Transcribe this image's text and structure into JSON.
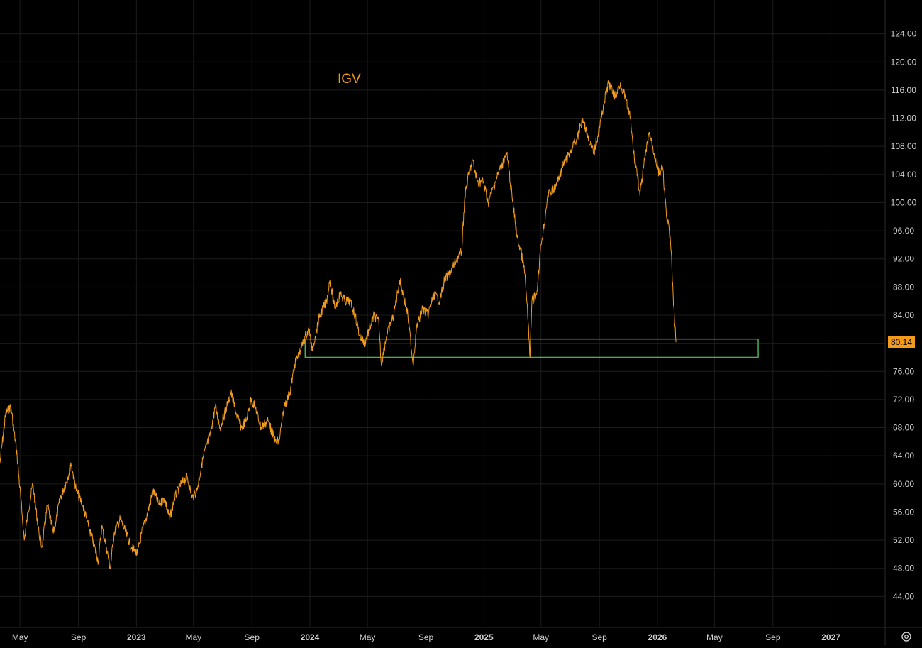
{
  "chart_data": {
    "type": "line",
    "title": "IGV",
    "xlabel": "",
    "ylabel": "",
    "x_range": [
      "2022-03-20",
      "2027-04-25"
    ],
    "ylim": [
      40,
      128
    ],
    "grid": true,
    "y_ticks": [
      "44.00",
      "48.00",
      "52.00",
      "56.00",
      "60.00",
      "64.00",
      "68.00",
      "72.00",
      "76.00",
      "80.00",
      "84.00",
      "88.00",
      "92.00",
      "96.00",
      "100.00",
      "104.00",
      "108.00",
      "112.00",
      "116.00",
      "120.00",
      "124.00"
    ],
    "x_ticks": [
      {
        "date": "2022-05-01",
        "label": "May",
        "bold": false
      },
      {
        "date": "2022-09-01",
        "label": "Sep",
        "bold": false
      },
      {
        "date": "2023-01-01",
        "label": "2023",
        "bold": true
      },
      {
        "date": "2023-05-01",
        "label": "May",
        "bold": false
      },
      {
        "date": "2023-09-01",
        "label": "Sep",
        "bold": false
      },
      {
        "date": "2024-01-01",
        "label": "2024",
        "bold": true
      },
      {
        "date": "2024-05-01",
        "label": "May",
        "bold": false
      },
      {
        "date": "2024-09-01",
        "label": "Sep",
        "bold": false
      },
      {
        "date": "2025-01-01",
        "label": "2025",
        "bold": true
      },
      {
        "date": "2025-05-01",
        "label": "May",
        "bold": false
      },
      {
        "date": "2025-09-01",
        "label": "Sep",
        "bold": false
      },
      {
        "date": "2026-01-01",
        "label": "2026",
        "bold": true
      },
      {
        "date": "2026-05-01",
        "label": "May",
        "bold": false
      },
      {
        "date": "2026-09-01",
        "label": "Sep",
        "bold": false
      },
      {
        "date": "2027-01-01",
        "label": "2027",
        "bold": true
      }
    ],
    "series": [
      {
        "color": "#f29b1d",
        "points": [
          [
            "2022-03-20",
            63
          ],
          [
            "2022-04-01",
            70
          ],
          [
            "2022-04-12",
            71
          ],
          [
            "2022-04-25",
            64
          ],
          [
            "2022-05-05",
            56
          ],
          [
            "2022-05-10",
            52
          ],
          [
            "2022-05-18",
            56
          ],
          [
            "2022-05-28",
            60
          ],
          [
            "2022-06-10",
            53
          ],
          [
            "2022-06-16",
            51
          ],
          [
            "2022-06-28",
            57
          ],
          [
            "2022-07-10",
            53
          ],
          [
            "2022-07-25",
            58
          ],
          [
            "2022-08-10",
            61
          ],
          [
            "2022-08-16",
            63
          ],
          [
            "2022-08-28",
            59
          ],
          [
            "2022-09-10",
            57
          ],
          [
            "2022-09-22",
            54
          ],
          [
            "2022-10-01",
            52
          ],
          [
            "2022-10-13",
            49
          ],
          [
            "2022-10-20",
            54
          ],
          [
            "2022-10-30",
            51
          ],
          [
            "2022-11-07",
            48
          ],
          [
            "2022-11-15",
            53
          ],
          [
            "2022-11-28",
            55
          ],
          [
            "2022-12-10",
            53
          ],
          [
            "2022-12-22",
            51
          ],
          [
            "2023-01-03",
            50
          ],
          [
            "2023-01-12",
            53
          ],
          [
            "2023-01-25",
            56
          ],
          [
            "2023-02-05",
            59
          ],
          [
            "2023-02-18",
            57
          ],
          [
            "2023-03-01",
            58
          ],
          [
            "2023-03-12",
            55
          ],
          [
            "2023-03-22",
            58
          ],
          [
            "2023-04-05",
            60
          ],
          [
            "2023-04-18",
            61
          ],
          [
            "2023-04-28",
            58
          ],
          [
            "2023-05-08",
            59
          ],
          [
            "2023-05-22",
            64
          ],
          [
            "2023-06-05",
            67
          ],
          [
            "2023-06-16",
            71
          ],
          [
            "2023-06-26",
            68
          ],
          [
            "2023-07-10",
            71
          ],
          [
            "2023-07-19",
            73
          ],
          [
            "2023-07-30",
            70
          ],
          [
            "2023-08-10",
            68
          ],
          [
            "2023-08-20",
            69
          ],
          [
            "2023-08-30",
            72
          ],
          [
            "2023-09-08",
            71
          ],
          [
            "2023-09-20",
            68
          ],
          [
            "2023-10-05",
            69
          ],
          [
            "2023-10-20",
            66
          ],
          [
            "2023-10-28",
            66
          ],
          [
            "2023-11-08",
            71
          ],
          [
            "2023-11-20",
            73
          ],
          [
            "2023-11-30",
            77
          ],
          [
            "2023-12-12",
            79
          ],
          [
            "2023-12-22",
            81
          ],
          [
            "2023-12-31",
            82
          ],
          [
            "2024-01-05",
            79
          ],
          [
            "2024-01-12",
            81
          ],
          [
            "2024-01-22",
            84
          ],
          [
            "2024-02-05",
            86
          ],
          [
            "2024-02-12",
            89
          ],
          [
            "2024-02-22",
            85
          ],
          [
            "2024-03-05",
            87
          ],
          [
            "2024-03-15",
            86
          ],
          [
            "2024-03-25",
            86
          ],
          [
            "2024-04-05",
            84
          ],
          [
            "2024-04-15",
            81
          ],
          [
            "2024-04-25",
            80
          ],
          [
            "2024-05-05",
            82
          ],
          [
            "2024-05-15",
            84
          ],
          [
            "2024-05-25",
            83
          ],
          [
            "2024-05-30",
            77
          ],
          [
            "2024-06-10",
            81
          ],
          [
            "2024-06-25",
            84
          ],
          [
            "2024-07-08",
            89
          ],
          [
            "2024-07-15",
            87
          ],
          [
            "2024-07-25",
            84
          ],
          [
            "2024-08-05",
            77
          ],
          [
            "2024-08-12",
            82
          ],
          [
            "2024-08-25",
            85
          ],
          [
            "2024-09-05",
            84
          ],
          [
            "2024-09-18",
            87
          ],
          [
            "2024-09-30",
            86
          ],
          [
            "2024-10-10",
            89
          ],
          [
            "2024-10-22",
            90
          ],
          [
            "2024-11-05",
            92
          ],
          [
            "2024-11-15",
            93
          ],
          [
            "2024-11-22",
            101
          ],
          [
            "2024-11-30",
            104
          ],
          [
            "2024-12-08",
            106
          ],
          [
            "2024-12-18",
            103
          ],
          [
            "2024-12-31",
            103
          ],
          [
            "2025-01-10",
            100
          ],
          [
            "2025-01-25",
            103
          ],
          [
            "2025-02-05",
            105
          ],
          [
            "2025-02-18",
            107
          ],
          [
            "2025-03-01",
            101
          ],
          [
            "2025-03-12",
            95
          ],
          [
            "2025-03-20",
            93
          ],
          [
            "2025-03-28",
            90
          ],
          [
            "2025-04-04",
            83
          ],
          [
            "2025-04-08",
            78
          ],
          [
            "2025-04-12",
            86
          ],
          [
            "2025-04-22",
            87
          ],
          [
            "2025-05-01",
            94
          ],
          [
            "2025-05-08",
            97
          ],
          [
            "2025-05-15",
            101
          ],
          [
            "2025-05-30",
            102
          ],
          [
            "2025-06-15",
            105
          ],
          [
            "2025-06-30",
            107
          ],
          [
            "2025-07-15",
            109
          ],
          [
            "2025-07-28",
            112
          ],
          [
            "2025-08-05",
            110
          ],
          [
            "2025-08-20",
            107
          ],
          [
            "2025-08-30",
            110
          ],
          [
            "2025-09-10",
            114
          ],
          [
            "2025-09-20",
            117
          ],
          [
            "2025-10-05",
            115
          ],
          [
            "2025-10-15",
            117
          ],
          [
            "2025-10-25",
            115
          ],
          [
            "2025-11-05",
            112
          ],
          [
            "2025-11-12",
            107
          ],
          [
            "2025-11-20",
            104
          ],
          [
            "2025-11-25",
            101
          ],
          [
            "2025-12-05",
            106
          ],
          [
            "2025-12-15",
            110
          ],
          [
            "2025-12-25",
            107
          ],
          [
            "2026-01-05",
            104
          ],
          [
            "2026-01-12",
            105
          ],
          [
            "2026-01-20",
            98
          ],
          [
            "2026-01-26",
            96
          ],
          [
            "2026-01-30",
            93
          ],
          [
            "2026-02-03",
            87
          ],
          [
            "2026-02-06",
            83
          ],
          [
            "2026-02-09",
            80.14
          ]
        ]
      }
    ],
    "last_price": "80.14",
    "zone": {
      "from_date": "2023-12-22",
      "to_date": "2026-08-01",
      "y_low": 78,
      "y_high": 80.6,
      "color": "#4caf50"
    }
  },
  "icons": {
    "settings": "settings-gear-icon"
  }
}
